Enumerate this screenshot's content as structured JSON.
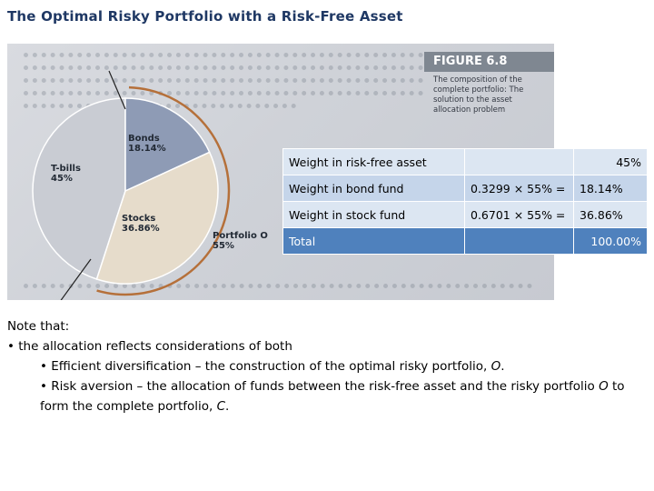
{
  "slide": {
    "title": "The Optimal Risky Portfolio with a Risk-Free Asset"
  },
  "figure": {
    "number": "FIGURE 6.8",
    "caption": "The composition of the complete portfolio: The solution to the asset allocation problem",
    "pie_labels": {
      "bonds_name": "Bonds",
      "bonds_pct": "18.14%",
      "tbills_name": "T-bills",
      "tbills_pct": "45%",
      "stocks_name": "Stocks",
      "stocks_pct": "36.86%",
      "portfolio_name": "Portfolio O",
      "portfolio_pct": "55%"
    },
    "slice_values": {
      "tbills": 45,
      "bonds": 18.14,
      "stocks": 36.86
    },
    "colors": {
      "tbills": "#c9ccd3",
      "bonds": "#8e9bb5",
      "stocks": "#e6dccb",
      "arrow": "#b5703a"
    }
  },
  "table": {
    "rows": [
      {
        "label": "Weight in risk-free asset",
        "formula": "",
        "value": "45%"
      },
      {
        "label": "Weight in bond fund",
        "formula": "0.3299 × 55% =",
        "value": "18.14%"
      },
      {
        "label": "Weight in stock fund",
        "formula": "0.6701 × 55% =",
        "value": "36.86%"
      },
      {
        "label": "Total",
        "formula": "",
        "value": "100.00%"
      }
    ]
  },
  "notes": {
    "intro": "Note that:",
    "bullet1": "• the allocation reflects considerations of both",
    "sub1_prefix": "• Efficient diversification – the construction of the optimal risky portfolio,",
    "sub1_symbol": "O",
    "sub1_suffix": ".",
    "sub2_prefix": "• Risk aversion – the allocation of funds between the risk-free asset and the risky portfolio",
    "sub2_symbol": "O",
    "sub2_middle": "to form the complete portfolio,",
    "sub2_symbol2": "C",
    "sub2_suffix": "."
  }
}
